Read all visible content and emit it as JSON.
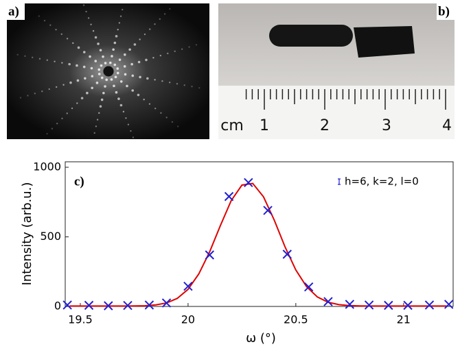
{
  "panels": {
    "a": {
      "label": "a)"
    },
    "b": {
      "label": "b)",
      "ruler_labels": [
        "cm",
        "1",
        "2",
        "3",
        "4"
      ]
    }
  },
  "chart_data": {
    "type": "scatter",
    "label": "c)",
    "xlabel": "ω (°)",
    "ylabel": "Intensity (arb.u.)",
    "xlim": [
      19.43,
      21.23
    ],
    "ylim": [
      0,
      1000
    ],
    "xticks": [
      19.5,
      20,
      20.5,
      21
    ],
    "yticks": [
      0,
      500,
      1000
    ],
    "legend": "upper right",
    "grid": false,
    "series": [
      {
        "name": "h=6, k=2, l=0",
        "color": "#2020d0",
        "x": [
          19.44,
          19.54,
          19.63,
          19.72,
          19.82,
          19.9,
          20.0,
          20.1,
          20.19,
          20.28,
          20.37,
          20.46,
          20.56,
          20.65,
          20.75,
          20.84,
          20.93,
          21.02,
          21.12,
          21.21
        ],
        "values": [
          10,
          8,
          5,
          7,
          10,
          25,
          145,
          370,
          790,
          890,
          690,
          375,
          140,
          35,
          15,
          10,
          8,
          8,
          10,
          15
        ]
      },
      {
        "color": "#e00000",
        "x": [
          19.45,
          19.5,
          19.55,
          19.6,
          19.65,
          19.7,
          19.75,
          19.8,
          19.85,
          19.9,
          19.95,
          20.0,
          20.05,
          20.1,
          20.15,
          20.2,
          20.25,
          20.3,
          20.35,
          20.4,
          20.45,
          20.5,
          20.55,
          20.6,
          20.65,
          20.7,
          20.75,
          20.8,
          20.85,
          20.9,
          20.95,
          21.0,
          21.05,
          21.1,
          21.15,
          21.2
        ],
        "values": [
          3,
          3,
          3,
          3,
          3,
          3,
          4,
          5,
          11,
          25,
          58,
          123,
          234,
          392,
          581,
          760,
          872,
          884,
          788,
          620,
          428,
          262,
          142,
          68,
          30,
          13,
          6,
          4,
          3,
          3,
          3,
          3,
          3,
          3,
          3,
          3
        ]
      }
    ]
  }
}
